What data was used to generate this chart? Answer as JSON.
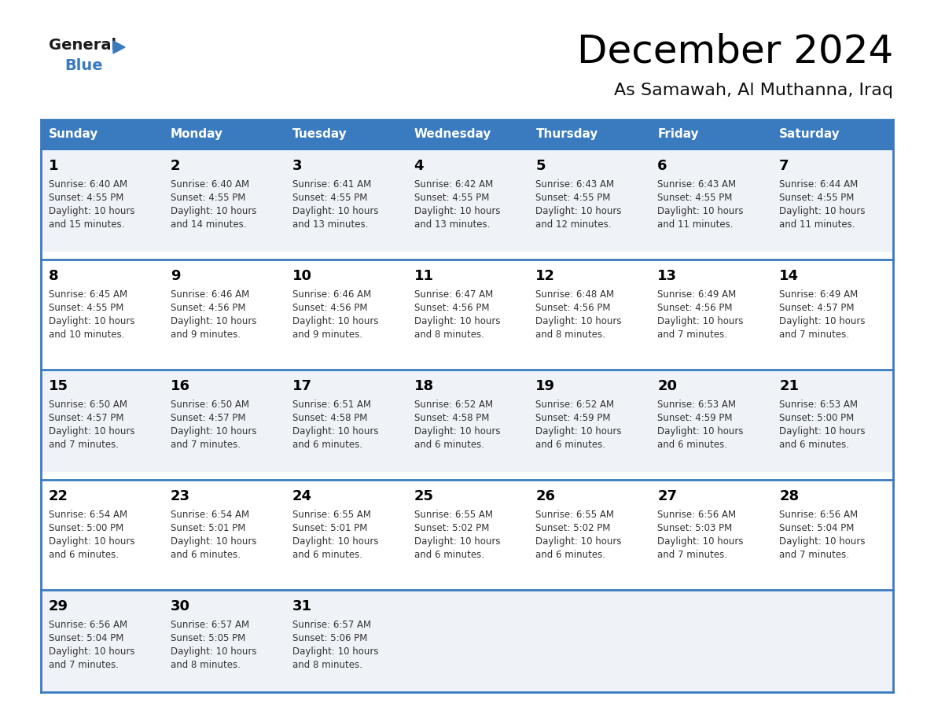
{
  "title": "December 2024",
  "subtitle": "As Samawah, Al Muthanna, Iraq",
  "header_bg": "#3a7bbf",
  "header_text_color": "#ffffff",
  "cell_bg_odd": "#f0f4f8",
  "cell_bg_even": "#ffffff",
  "day_number_color": "#000000",
  "text_color": "#333333",
  "border_color": "#3a7bbf",
  "days_of_week": [
    "Sunday",
    "Monday",
    "Tuesday",
    "Wednesday",
    "Thursday",
    "Friday",
    "Saturday"
  ],
  "weeks": [
    [
      {
        "day": 1,
        "sunrise": "6:40 AM",
        "sunset": "4:55 PM",
        "daylight": "10 hours and 15 minutes."
      },
      {
        "day": 2,
        "sunrise": "6:40 AM",
        "sunset": "4:55 PM",
        "daylight": "10 hours and 14 minutes."
      },
      {
        "day": 3,
        "sunrise": "6:41 AM",
        "sunset": "4:55 PM",
        "daylight": "10 hours and 13 minutes."
      },
      {
        "day": 4,
        "sunrise": "6:42 AM",
        "sunset": "4:55 PM",
        "daylight": "10 hours and 13 minutes."
      },
      {
        "day": 5,
        "sunrise": "6:43 AM",
        "sunset": "4:55 PM",
        "daylight": "10 hours and 12 minutes."
      },
      {
        "day": 6,
        "sunrise": "6:43 AM",
        "sunset": "4:55 PM",
        "daylight": "10 hours and 11 minutes."
      },
      {
        "day": 7,
        "sunrise": "6:44 AM",
        "sunset": "4:55 PM",
        "daylight": "10 hours and 11 minutes."
      }
    ],
    [
      {
        "day": 8,
        "sunrise": "6:45 AM",
        "sunset": "4:55 PM",
        "daylight": "10 hours and 10 minutes."
      },
      {
        "day": 9,
        "sunrise": "6:46 AM",
        "sunset": "4:56 PM",
        "daylight": "10 hours and 9 minutes."
      },
      {
        "day": 10,
        "sunrise": "6:46 AM",
        "sunset": "4:56 PM",
        "daylight": "10 hours and 9 minutes."
      },
      {
        "day": 11,
        "sunrise": "6:47 AM",
        "sunset": "4:56 PM",
        "daylight": "10 hours and 8 minutes."
      },
      {
        "day": 12,
        "sunrise": "6:48 AM",
        "sunset": "4:56 PM",
        "daylight": "10 hours and 8 minutes."
      },
      {
        "day": 13,
        "sunrise": "6:49 AM",
        "sunset": "4:56 PM",
        "daylight": "10 hours and 7 minutes."
      },
      {
        "day": 14,
        "sunrise": "6:49 AM",
        "sunset": "4:57 PM",
        "daylight": "10 hours and 7 minutes."
      }
    ],
    [
      {
        "day": 15,
        "sunrise": "6:50 AM",
        "sunset": "4:57 PM",
        "daylight": "10 hours and 7 minutes."
      },
      {
        "day": 16,
        "sunrise": "6:50 AM",
        "sunset": "4:57 PM",
        "daylight": "10 hours and 7 minutes."
      },
      {
        "day": 17,
        "sunrise": "6:51 AM",
        "sunset": "4:58 PM",
        "daylight": "10 hours and 6 minutes."
      },
      {
        "day": 18,
        "sunrise": "6:52 AM",
        "sunset": "4:58 PM",
        "daylight": "10 hours and 6 minutes."
      },
      {
        "day": 19,
        "sunrise": "6:52 AM",
        "sunset": "4:59 PM",
        "daylight": "10 hours and 6 minutes."
      },
      {
        "day": 20,
        "sunrise": "6:53 AM",
        "sunset": "4:59 PM",
        "daylight": "10 hours and 6 minutes."
      },
      {
        "day": 21,
        "sunrise": "6:53 AM",
        "sunset": "5:00 PM",
        "daylight": "10 hours and 6 minutes."
      }
    ],
    [
      {
        "day": 22,
        "sunrise": "6:54 AM",
        "sunset": "5:00 PM",
        "daylight": "10 hours and 6 minutes."
      },
      {
        "day": 23,
        "sunrise": "6:54 AM",
        "sunset": "5:01 PM",
        "daylight": "10 hours and 6 minutes."
      },
      {
        "day": 24,
        "sunrise": "6:55 AM",
        "sunset": "5:01 PM",
        "daylight": "10 hours and 6 minutes."
      },
      {
        "day": 25,
        "sunrise": "6:55 AM",
        "sunset": "5:02 PM",
        "daylight": "10 hours and 6 minutes."
      },
      {
        "day": 26,
        "sunrise": "6:55 AM",
        "sunset": "5:02 PM",
        "daylight": "10 hours and 6 minutes."
      },
      {
        "day": 27,
        "sunrise": "6:56 AM",
        "sunset": "5:03 PM",
        "daylight": "10 hours and 7 minutes."
      },
      {
        "day": 28,
        "sunrise": "6:56 AM",
        "sunset": "5:04 PM",
        "daylight": "10 hours and 7 minutes."
      }
    ],
    [
      {
        "day": 29,
        "sunrise": "6:56 AM",
        "sunset": "5:04 PM",
        "daylight": "10 hours and 7 minutes."
      },
      {
        "day": 30,
        "sunrise": "6:57 AM",
        "sunset": "5:05 PM",
        "daylight": "10 hours and 8 minutes."
      },
      {
        "day": 31,
        "sunrise": "6:57 AM",
        "sunset": "5:06 PM",
        "daylight": "10 hours and 8 minutes."
      },
      null,
      null,
      null,
      null
    ]
  ]
}
